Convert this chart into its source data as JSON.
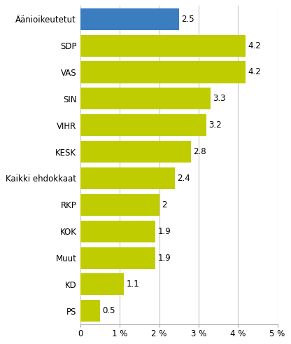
{
  "categories": [
    "Äänioikeutetut",
    "SDP",
    "VAS",
    "SIN",
    "VIHR",
    "KESK",
    "Kaikki ehdokkaat",
    "RKP",
    "KOK",
    "Muut",
    "KD",
    "PS"
  ],
  "values": [
    2.5,
    4.2,
    4.2,
    3.3,
    3.2,
    2.8,
    2.4,
    2.0,
    1.9,
    1.9,
    1.1,
    0.5
  ],
  "bar_colors": [
    "#3a7ebf",
    "#bfcc00",
    "#bfcc00",
    "#bfcc00",
    "#bfcc00",
    "#bfcc00",
    "#bfcc00",
    "#bfcc00",
    "#bfcc00",
    "#bfcc00",
    "#bfcc00",
    "#bfcc00"
  ],
  "xlim": [
    0,
    5
  ],
  "xticks": [
    0,
    1,
    2,
    3,
    4,
    5
  ],
  "xticklabels": [
    "0",
    "1 %",
    "2 %",
    "3 %",
    "4 %",
    "5 %"
  ],
  "value_labels": [
    "2.5",
    "4.2",
    "4.2",
    "3.3",
    "3.2",
    "2.8",
    "2.4",
    "2",
    "1.9",
    "1.9",
    "1.1",
    "0.5"
  ],
  "background_color": "#ffffff",
  "grid_color": "#c8c8c8",
  "bar_height": 0.82,
  "label_fontsize": 8.5,
  "value_fontsize": 8.5
}
